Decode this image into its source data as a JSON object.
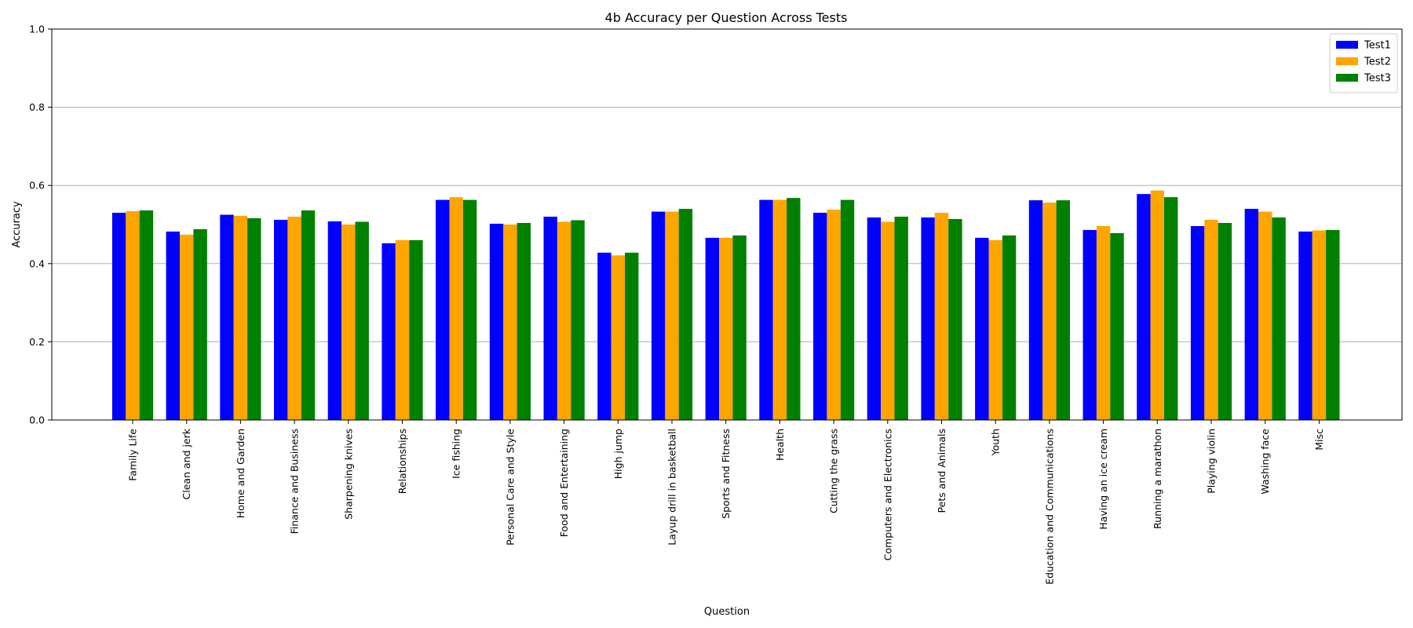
{
  "chart_data": {
    "type": "bar",
    "title": "4b Accuracy per Question Across Tests",
    "xlabel": "Question",
    "ylabel": "Accuracy",
    "ylim": [
      0,
      1.0
    ],
    "yticks": [
      0.0,
      0.2,
      0.4,
      0.6,
      0.8,
      1.0
    ],
    "ytick_labels": [
      "0.0",
      "0.2",
      "0.4",
      "0.6",
      "0.8",
      "1.0"
    ],
    "grid": "y",
    "legend_position": "top-right",
    "categories": [
      "Family Life",
      "Clean and jerk",
      "Home and Garden",
      "Finance and Business",
      "Sharpening knives",
      "Relationships",
      "Ice fishing",
      "Personal Care and Style",
      "Food and Entertaining",
      "High jump",
      "Layup drill in basketball",
      "Sports and Fitness",
      "Health",
      "Cutting the grass",
      "Computers and Electronics",
      "Pets and Animals",
      "Youth",
      "Education and Communications",
      "Having an ice cream",
      "Running a marathon",
      "Playing violin",
      "Washing face",
      "Misc"
    ],
    "series": [
      {
        "name": "Test1",
        "color": "#0000ff",
        "values": [
          0.53,
          0.482,
          0.525,
          0.512,
          0.508,
          0.452,
          0.563,
          0.502,
          0.52,
          0.428,
          0.533,
          0.466,
          0.563,
          0.53,
          0.518,
          0.518,
          0.466,
          0.562,
          0.486,
          0.578,
          0.496,
          0.54,
          0.482
        ]
      },
      {
        "name": "Test2",
        "color": "#ffa500",
        "values": [
          0.534,
          0.474,
          0.522,
          0.52,
          0.5,
          0.46,
          0.57,
          0.5,
          0.507,
          0.421,
          0.533,
          0.466,
          0.563,
          0.538,
          0.507,
          0.53,
          0.46,
          0.556,
          0.496,
          0.587,
          0.512,
          0.533,
          0.485
        ]
      },
      {
        "name": "Test3",
        "color": "#008000",
        "values": [
          0.536,
          0.488,
          0.516,
          0.536,
          0.507,
          0.46,
          0.563,
          0.504,
          0.511,
          0.428,
          0.54,
          0.472,
          0.568,
          0.563,
          0.52,
          0.514,
          0.472,
          0.562,
          0.478,
          0.57,
          0.504,
          0.518,
          0.486
        ]
      }
    ]
  }
}
